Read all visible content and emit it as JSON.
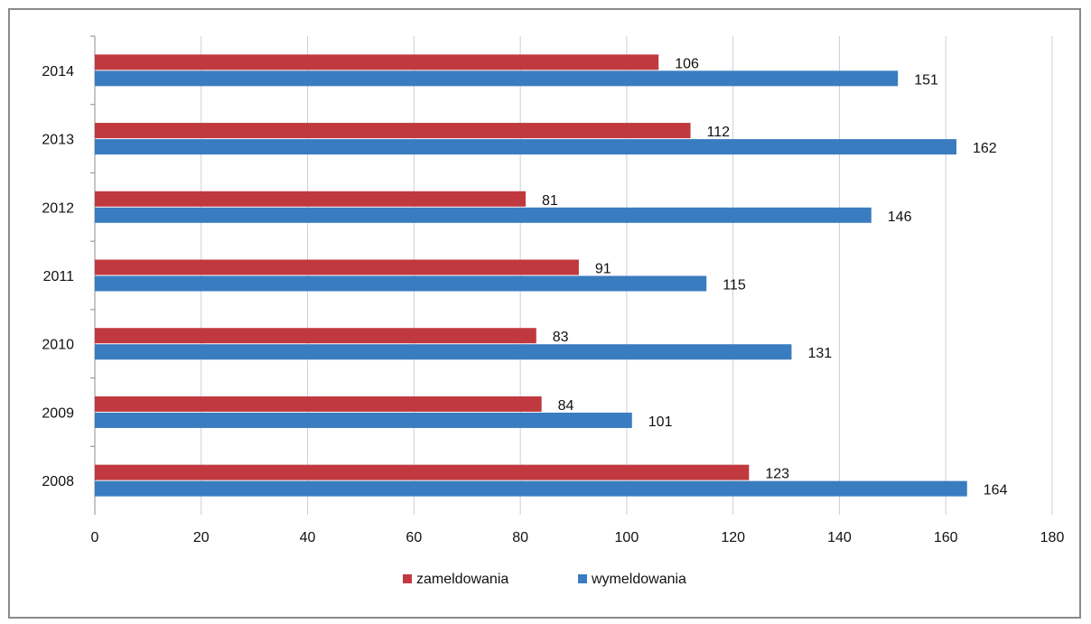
{
  "chart_data": {
    "type": "bar",
    "orientation": "horizontal",
    "categories": [
      "2008",
      "2009",
      "2010",
      "2011",
      "2012",
      "2013",
      "2014"
    ],
    "series": [
      {
        "name": "zameldowania",
        "values": [
          123,
          84,
          83,
          91,
          81,
          112,
          106
        ],
        "color": "#c0393f"
      },
      {
        "name": "wymeldowania",
        "values": [
          164,
          101,
          131,
          115,
          146,
          162,
          151
        ],
        "color": "#3a7cc0"
      }
    ],
    "xlim": [
      0,
      180
    ],
    "xticks": [
      0,
      20,
      40,
      60,
      80,
      100,
      120,
      140,
      160,
      180
    ],
    "grid": "vertical",
    "legend_position": "bottom-center",
    "title": "",
    "xlabel": "",
    "ylabel": ""
  }
}
